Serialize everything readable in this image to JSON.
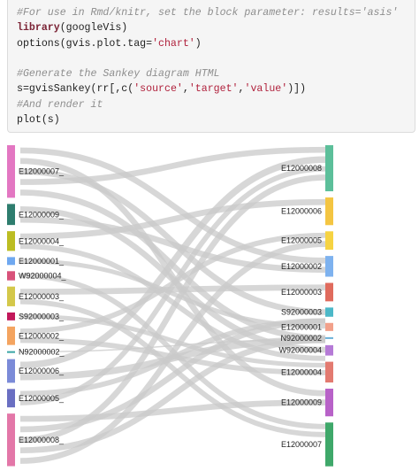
{
  "code": {
    "lines": [
      {
        "kind": "comment",
        "text": "#For use in Rmd/knitr, set the block parameter: results='asis'"
      },
      {
        "kind": "mixed",
        "parts": [
          {
            "t": "library",
            "c": "kw"
          },
          {
            "t": "(googleVis)",
            "c": "plain"
          }
        ]
      },
      {
        "kind": "mixed",
        "parts": [
          {
            "t": "options(gvis.plot.tag=",
            "c": "plain"
          },
          {
            "t": "'chart'",
            "c": "str"
          },
          {
            "t": ")",
            "c": "plain"
          }
        ]
      },
      {
        "kind": "blank",
        "text": ""
      },
      {
        "kind": "comment",
        "text": "#Generate the Sankey diagram HTML"
      },
      {
        "kind": "mixed",
        "parts": [
          {
            "t": "s=gvisSankey(rr[,c(",
            "c": "plain"
          },
          {
            "t": "'source'",
            "c": "str"
          },
          {
            "t": ",",
            "c": "plain"
          },
          {
            "t": "'target'",
            "c": "str"
          },
          {
            "t": ",",
            "c": "plain"
          },
          {
            "t": "'value'",
            "c": "str"
          },
          {
            "t": ")])",
            "c": "plain"
          }
        ]
      },
      {
        "kind": "comment",
        "text": "#And render it"
      },
      {
        "kind": "mixed",
        "parts": [
          {
            "t": "plot(s)",
            "c": "plain"
          }
        ]
      }
    ]
  },
  "sankey": {
    "link_color": "#c9c9c9",
    "source_nodes": [
      {
        "label": "E12000007_",
        "color": "#e377c2",
        "value": 40
      },
      {
        "label": "E12000009_",
        "color": "#2e7d6e",
        "value": 16
      },
      {
        "label": "E12000004_",
        "color": "#bcbd22",
        "value": 15
      },
      {
        "label": "E12000001_",
        "color": "#6fa8f0",
        "value": 6
      },
      {
        "label": "W92000004_",
        "color": "#d8527a",
        "value": 7
      },
      {
        "label": "E12000003_",
        "color": "#d4c84a",
        "value": 15
      },
      {
        "label": "S92000003_",
        "color": "#c2185b",
        "value": 6
      },
      {
        "label": "E12000002_",
        "color": "#f4a460",
        "value": 14
      },
      {
        "label": "N92000002_",
        "color": "#3aa5a5",
        "value": 1
      },
      {
        "label": "E12000006_",
        "color": "#7b8bd8",
        "value": 18
      },
      {
        "label": "E12000005_",
        "color": "#6a6fc2",
        "value": 14
      },
      {
        "label": "E12000008_",
        "color": "#e377a8",
        "value": 40
      }
    ],
    "target_nodes": [
      {
        "label": "E12000008",
        "color": "#5cbf9a",
        "value": 40
      },
      {
        "label": "E12000006",
        "color": "#f4c542",
        "value": 24
      },
      {
        "label": "E12000005",
        "color": "#f6d342",
        "value": 16
      },
      {
        "label": "E12000002",
        "color": "#7eb2ef",
        "value": 18
      },
      {
        "label": "E12000003",
        "color": "#e06b5d",
        "value": 16
      },
      {
        "label": "S92000003",
        "color": "#4cb8c8",
        "value": 8
      },
      {
        "label": "E12000001",
        "color": "#f2a08a",
        "value": 7
      },
      {
        "label": "N92000002",
        "color": "#6bb0d8",
        "value": 1
      },
      {
        "label": "W92000004",
        "color": "#b57ad6",
        "value": 9
      },
      {
        "label": "E12000004",
        "color": "#e37a70",
        "value": 18
      },
      {
        "label": "E12000009",
        "color": "#b862c8",
        "value": 24
      },
      {
        "label": "E12000007",
        "color": "#3fa86a",
        "value": 38
      }
    ]
  }
}
